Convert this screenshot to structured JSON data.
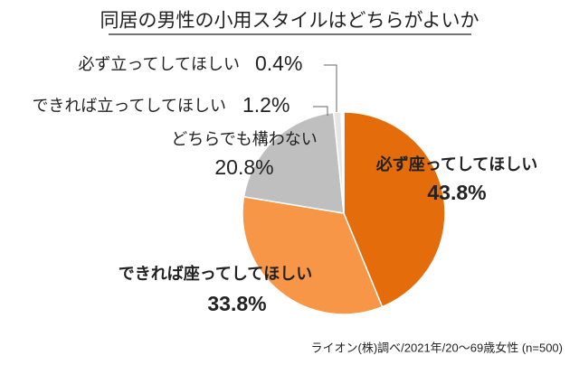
{
  "chart_data": {
    "type": "pie",
    "title": "同居の男性の小用スタイルはどちらがよいか",
    "categories": [
      "必ず座ってしてほしい",
      "できれば座ってしてほしい",
      "どちらでも構わない",
      "できれば立ってしてほしい",
      "必ず立ってしてほしい"
    ],
    "values": [
      43.8,
      33.8,
      20.8,
      1.2,
      0.4
    ],
    "value_labels": [
      "43.8%",
      "33.8%",
      "20.8%",
      "1.2%",
      "0.4%"
    ],
    "colors": [
      "#e46c0a",
      "#f79646",
      "#bfbfbf",
      "#e6e6e6",
      "#ffffff"
    ],
    "source": "ライオン(株)調べ/2021年/20～69歳女性 (n=500)"
  }
}
